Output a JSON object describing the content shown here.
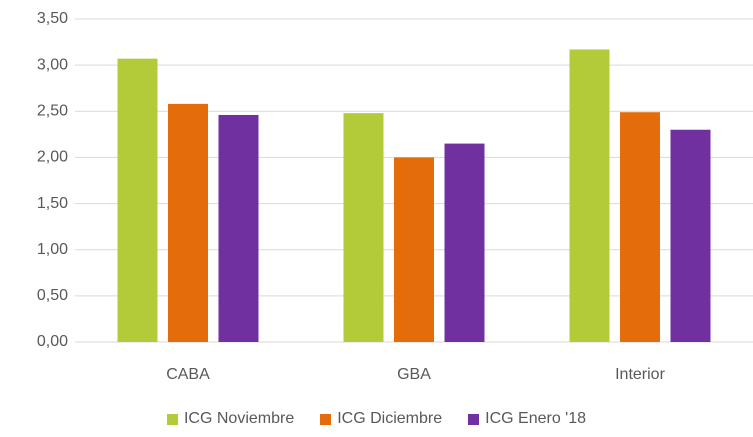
{
  "chart_data": {
    "type": "bar",
    "categories": [
      "CABA",
      "GBA",
      "Interior"
    ],
    "series": [
      {
        "name": "ICG Noviembre",
        "color": "#b3cb38",
        "values": [
          3.07,
          2.48,
          3.17
        ]
      },
      {
        "name": "ICG Diciembre",
        "color": "#e46c0a",
        "values": [
          2.58,
          2.0,
          2.49
        ]
      },
      {
        "name": "ICG Enero '18",
        "color": "#7030a0",
        "values": [
          2.46,
          2.15,
          2.3
        ]
      }
    ],
    "ylim": [
      0,
      3.5
    ],
    "yticks": [
      {
        "value": 0,
        "label": "0,00"
      },
      {
        "value": 0.5,
        "label": "0,50"
      },
      {
        "value": 1,
        "label": "1,00"
      },
      {
        "value": 1.5,
        "label": "1,50"
      },
      {
        "value": 2,
        "label": "2,00"
      },
      {
        "value": 2.5,
        "label": "2,50"
      },
      {
        "value": 3,
        "label": "3,00"
      },
      {
        "value": 3.5,
        "label": "3,50"
      }
    ],
    "grid": true
  }
}
